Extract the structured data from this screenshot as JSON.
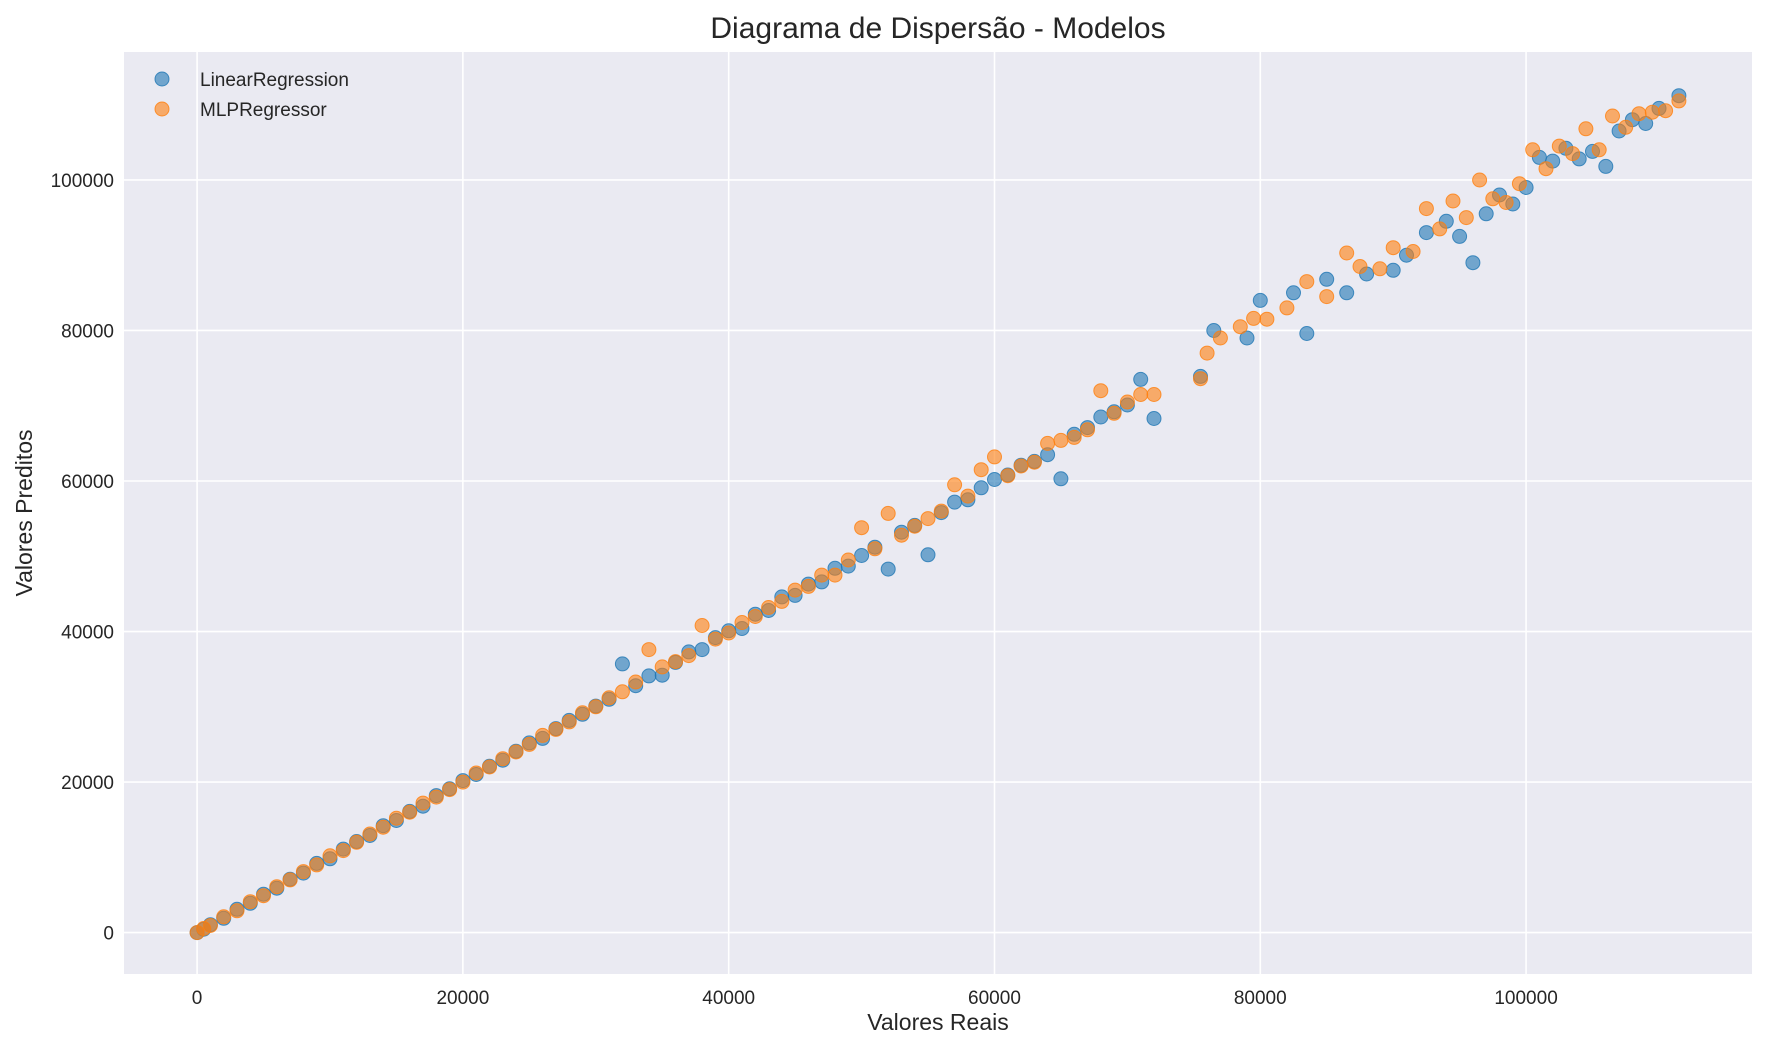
{
  "chart_data": {
    "type": "scatter",
    "title": "Diagrama de Dispersão - Modelos",
    "xlabel": "Valores Reais",
    "ylabel": "Valores Preditos",
    "xlim": [
      -5500,
      117000
    ],
    "ylim": [
      -5500,
      117000
    ],
    "xticks": [
      0,
      20000,
      40000,
      60000,
      80000,
      100000
    ],
    "yticks": [
      0,
      20000,
      40000,
      60000,
      80000,
      100000
    ],
    "xtick_labels": [
      "0",
      "20000",
      "40000",
      "60000",
      "80000",
      "100000"
    ],
    "ytick_labels": [
      "0",
      "20000",
      "40000",
      "60000",
      "80000",
      "100000"
    ],
    "grid": true,
    "legend_position": "top-left",
    "series": [
      {
        "name": "LinearRegression",
        "color": "#1f77b4",
        "points": [
          [
            0,
            0
          ],
          [
            500,
            450
          ],
          [
            1000,
            1050
          ],
          [
            2000,
            1900
          ],
          [
            3000,
            3100
          ],
          [
            4000,
            3900
          ],
          [
            5000,
            5100
          ],
          [
            6000,
            5900
          ],
          [
            7000,
            7100
          ],
          [
            8000,
            7900
          ],
          [
            9000,
            9200
          ],
          [
            10000,
            9800
          ],
          [
            11000,
            11100
          ],
          [
            12000,
            12100
          ],
          [
            13000,
            12900
          ],
          [
            14000,
            14200
          ],
          [
            15000,
            14900
          ],
          [
            16000,
            16100
          ],
          [
            17000,
            16800
          ],
          [
            18000,
            18200
          ],
          [
            19000,
            19100
          ],
          [
            20000,
            20200
          ],
          [
            21000,
            21000
          ],
          [
            22000,
            22100
          ],
          [
            23000,
            22900
          ],
          [
            24000,
            24100
          ],
          [
            25000,
            25200
          ],
          [
            26000,
            25800
          ],
          [
            27000,
            27100
          ],
          [
            28000,
            28200
          ],
          [
            29000,
            29000
          ],
          [
            30000,
            30100
          ],
          [
            31000,
            31000
          ],
          [
            32000,
            35700
          ],
          [
            33000,
            32800
          ],
          [
            34000,
            34100
          ],
          [
            35000,
            34200
          ],
          [
            36000,
            35900
          ],
          [
            37000,
            37300
          ],
          [
            38000,
            37600
          ],
          [
            39000,
            39200
          ],
          [
            40000,
            40100
          ],
          [
            41000,
            40400
          ],
          [
            42000,
            42300
          ],
          [
            43000,
            42800
          ],
          [
            44000,
            44600
          ],
          [
            45000,
            44800
          ],
          [
            46000,
            46300
          ],
          [
            47000,
            46600
          ],
          [
            48000,
            48400
          ],
          [
            49000,
            48700
          ],
          [
            50000,
            50100
          ],
          [
            51000,
            51200
          ],
          [
            52000,
            48300
          ],
          [
            53000,
            53200
          ],
          [
            54000,
            54100
          ],
          [
            55000,
            50200
          ],
          [
            56000,
            55800
          ],
          [
            57000,
            57200
          ],
          [
            58000,
            57500
          ],
          [
            59000,
            59100
          ],
          [
            60000,
            60200
          ],
          [
            61000,
            60800
          ],
          [
            62000,
            62100
          ],
          [
            63000,
            62600
          ],
          [
            64000,
            63500
          ],
          [
            65000,
            60300
          ],
          [
            66000,
            66200
          ],
          [
            67000,
            67100
          ],
          [
            68000,
            68500
          ],
          [
            69000,
            69200
          ],
          [
            70000,
            70100
          ],
          [
            71000,
            73500
          ],
          [
            72000,
            68300
          ],
          [
            75500,
            73900
          ],
          [
            76500,
            80000
          ],
          [
            79000,
            79000
          ],
          [
            80000,
            84000
          ],
          [
            82500,
            85000
          ],
          [
            83500,
            79600
          ],
          [
            85000,
            86800
          ],
          [
            86500,
            85000
          ],
          [
            88000,
            87500
          ],
          [
            90000,
            88000
          ],
          [
            91000,
            90000
          ],
          [
            92500,
            93000
          ],
          [
            94000,
            94500
          ],
          [
            95000,
            92500
          ],
          [
            96000,
            89000
          ],
          [
            97000,
            95500
          ],
          [
            98000,
            98000
          ],
          [
            99000,
            96800
          ],
          [
            100000,
            99000
          ],
          [
            101000,
            103000
          ],
          [
            102000,
            102500
          ],
          [
            103000,
            104200
          ],
          [
            104000,
            102800
          ],
          [
            105000,
            103800
          ],
          [
            106000,
            101800
          ],
          [
            107000,
            106500
          ],
          [
            108000,
            108000
          ],
          [
            109000,
            107500
          ],
          [
            110000,
            109500
          ],
          [
            111500,
            111200
          ]
        ]
      },
      {
        "name": "MLPRegressor",
        "color": "#ff7f0e",
        "points": [
          [
            0,
            0
          ],
          [
            500,
            550
          ],
          [
            1000,
            950
          ],
          [
            2000,
            2100
          ],
          [
            3000,
            2900
          ],
          [
            4000,
            4100
          ],
          [
            5000,
            4900
          ],
          [
            6000,
            6100
          ],
          [
            7000,
            7000
          ],
          [
            8000,
            8100
          ],
          [
            9000,
            9000
          ],
          [
            10000,
            10200
          ],
          [
            11000,
            10900
          ],
          [
            12000,
            12000
          ],
          [
            13000,
            13100
          ],
          [
            14000,
            14000
          ],
          [
            15000,
            15200
          ],
          [
            16000,
            16000
          ],
          [
            17000,
            17200
          ],
          [
            18000,
            18000
          ],
          [
            19000,
            19000
          ],
          [
            20000,
            20000
          ],
          [
            21000,
            21200
          ],
          [
            22000,
            22000
          ],
          [
            23000,
            23100
          ],
          [
            24000,
            24000
          ],
          [
            25000,
            25000
          ],
          [
            26000,
            26200
          ],
          [
            27000,
            27000
          ],
          [
            28000,
            28000
          ],
          [
            29000,
            29200
          ],
          [
            30000,
            30000
          ],
          [
            31000,
            31200
          ],
          [
            32000,
            32000
          ],
          [
            33000,
            33300
          ],
          [
            34000,
            37600
          ],
          [
            35000,
            35300
          ],
          [
            36000,
            36000
          ],
          [
            37000,
            36800
          ],
          [
            38000,
            40800
          ],
          [
            39000,
            39000
          ],
          [
            40000,
            39800
          ],
          [
            41000,
            41200
          ],
          [
            42000,
            42000
          ],
          [
            43000,
            43200
          ],
          [
            44000,
            44000
          ],
          [
            45000,
            45500
          ],
          [
            46000,
            46000
          ],
          [
            47000,
            47500
          ],
          [
            48000,
            47500
          ],
          [
            49000,
            49500
          ],
          [
            50000,
            53800
          ],
          [
            51000,
            51000
          ],
          [
            52000,
            55700
          ],
          [
            53000,
            52800
          ],
          [
            54000,
            54000
          ],
          [
            55000,
            55000
          ],
          [
            56000,
            56000
          ],
          [
            57000,
            59500
          ],
          [
            58000,
            58000
          ],
          [
            59000,
            61500
          ],
          [
            60000,
            63200
          ],
          [
            61000,
            60700
          ],
          [
            62000,
            62000
          ],
          [
            63000,
            62500
          ],
          [
            64000,
            65000
          ],
          [
            65000,
            65400
          ],
          [
            66000,
            65800
          ],
          [
            67000,
            66800
          ],
          [
            68000,
            72000
          ],
          [
            69000,
            69000
          ],
          [
            70000,
            70500
          ],
          [
            71000,
            71500
          ],
          [
            72000,
            71500
          ],
          [
            75500,
            73600
          ],
          [
            76000,
            77000
          ],
          [
            77000,
            79000
          ],
          [
            78500,
            80500
          ],
          [
            79500,
            81600
          ],
          [
            80500,
            81500
          ],
          [
            82000,
            83000
          ],
          [
            83500,
            86500
          ],
          [
            85000,
            84500
          ],
          [
            86500,
            90300
          ],
          [
            87500,
            88500
          ],
          [
            89000,
            88200
          ],
          [
            90000,
            91000
          ],
          [
            91500,
            90500
          ],
          [
            92500,
            96200
          ],
          [
            93500,
            93500
          ],
          [
            94500,
            97200
          ],
          [
            95500,
            95000
          ],
          [
            96500,
            100000
          ],
          [
            97500,
            97500
          ],
          [
            98500,
            97000
          ],
          [
            99500,
            99500
          ],
          [
            100500,
            104000
          ],
          [
            101500,
            101500
          ],
          [
            102500,
            104500
          ],
          [
            103500,
            103500
          ],
          [
            104500,
            106800
          ],
          [
            105500,
            104000
          ],
          [
            106500,
            108500
          ],
          [
            107500,
            107000
          ],
          [
            108500,
            108800
          ],
          [
            109500,
            109000
          ],
          [
            110500,
            109200
          ],
          [
            111500,
            110500
          ]
        ]
      }
    ]
  }
}
